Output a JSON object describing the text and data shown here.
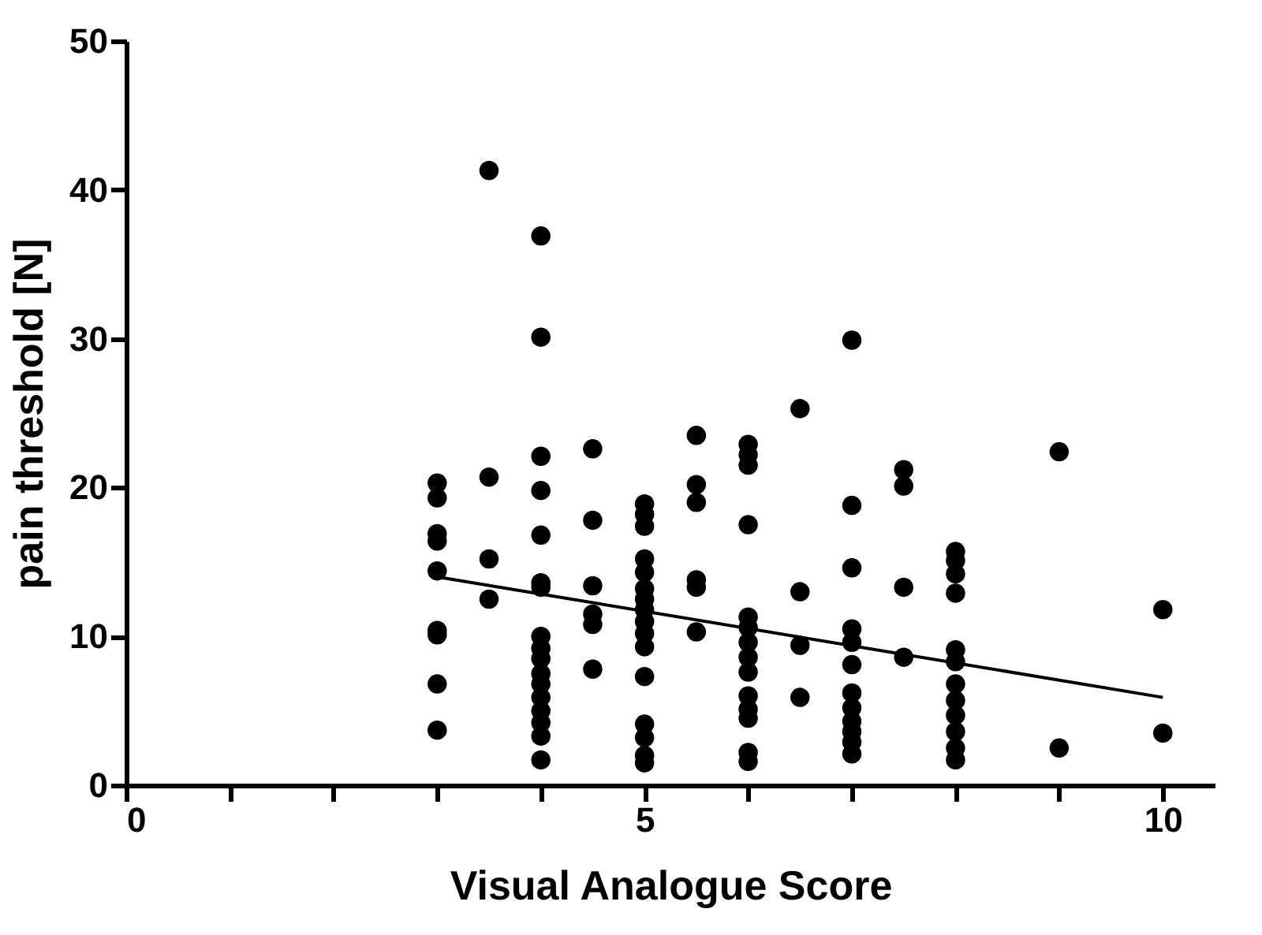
{
  "chart_data": {
    "type": "scatter",
    "xlabel": "Visual Analogue Score",
    "ylabel": "pain threshold [N]",
    "xlim": [
      0,
      10.5
    ],
    "ylim": [
      0,
      50
    ],
    "xticks": [
      0,
      {
        "value": 1,
        "label": null
      },
      {
        "value": 2,
        "label": null
      },
      {
        "value": 3,
        "label": null
      },
      {
        "value": 4,
        "label": null
      },
      5,
      {
        "value": 6,
        "label": null
      },
      {
        "value": 7,
        "label": null
      },
      {
        "value": 8,
        "label": null
      },
      {
        "value": 9,
        "label": null
      },
      10
    ],
    "yticks": [
      0,
      10,
      20,
      30,
      40,
      50
    ],
    "grid": false,
    "marker": "circle",
    "series": [
      {
        "color": "#000000",
        "x": [
          3,
          3,
          3,
          3,
          3,
          3,
          3,
          3,
          3,
          3.5,
          3.5,
          3.5,
          3.5,
          4,
          4,
          4,
          4,
          4,
          4,
          4,
          4,
          4,
          4,
          4,
          4,
          4,
          4,
          4,
          4,
          4,
          4.5,
          4.5,
          4.5,
          4.5,
          4.5,
          4.5,
          5,
          5,
          5,
          5,
          5,
          5,
          5,
          5,
          5,
          5,
          5,
          5,
          5,
          5,
          5,
          5,
          5.5,
          5.5,
          5.5,
          5.5,
          5.5,
          5.5,
          6,
          6,
          6,
          6,
          6,
          6,
          6,
          6,
          6,
          6,
          6,
          6,
          6,
          6,
          6.5,
          6.5,
          6.5,
          6.5,
          7,
          7,
          7,
          7,
          7,
          7,
          7,
          7,
          7,
          7,
          7,
          7,
          7.5,
          7.5,
          7.5,
          7.5,
          8,
          8,
          8,
          8,
          8,
          8,
          8,
          8,
          8,
          8,
          8,
          8,
          9,
          9,
          10,
          10
        ],
        "values": [
          20.3,
          19.3,
          16.9,
          16.4,
          14.4,
          10.4,
          10.1,
          6.8,
          3.7,
          41.3,
          20.7,
          15.2,
          12.5,
          36.9,
          30.1,
          22.1,
          19.8,
          16.8,
          13.6,
          13.3,
          10,
          9.2,
          8.5,
          7.5,
          6.8,
          5.9,
          5,
          4.2,
          3.3,
          1.7,
          22.6,
          17.8,
          13.4,
          11.5,
          10.8,
          7.8,
          18.9,
          18.2,
          17.4,
          15.2,
          14.3,
          13.2,
          12.5,
          11.8,
          11,
          10.2,
          9.3,
          7.3,
          4.1,
          3.2,
          2,
          1.5,
          23.5,
          20.2,
          19,
          13.8,
          13.3,
          10.3,
          22.9,
          22.2,
          21.5,
          17.5,
          11.3,
          10.6,
          9.6,
          8.6,
          7.6,
          6,
          5.1,
          4.5,
          2.2,
          1.6,
          25.3,
          13,
          9.4,
          5.9,
          29.9,
          18.8,
          14.6,
          10.5,
          9.6,
          8.1,
          6.2,
          5.2,
          4.3,
          3.6,
          2.9,
          2.1,
          21.2,
          20.1,
          13.3,
          8.6,
          15.7,
          15.1,
          14.2,
          12.9,
          9.1,
          8.3,
          6.8,
          5.7,
          4.7,
          3.6,
          2.5,
          1.7,
          22.4,
          2.5,
          11.8,
          3.5
        ]
      },
      {
        "type": "line",
        "color": "#000000",
        "x": [
          3,
          10
        ],
        "values": [
          14.0,
          5.9
        ],
        "marker": "none",
        "line_style": "solid"
      }
    ]
  }
}
